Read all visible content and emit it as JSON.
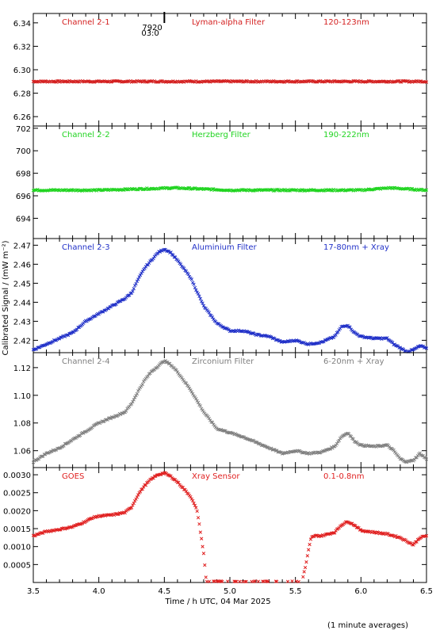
{
  "figure": {
    "shared_xlabel": "Time / h UTC, 04 Mar 2025",
    "shared_ylabel": "Calibrated Signal / (mW m⁻²)",
    "footnote": "(1 minute averages)",
    "marker_text": [
      "7920",
      "03:0"
    ],
    "marker_x": 4.5
  },
  "chart_data": [
    {
      "type": "scatter",
      "panel": "channel-2-1",
      "labels": [
        "Channel 2-1",
        "Lyman-alpha Filter",
        "120-123nm"
      ],
      "color": "#d42020",
      "xlim": [
        3.5,
        6.5
      ],
      "ylim": [
        6.252,
        6.348
      ],
      "yticks": [
        6.26,
        6.28,
        6.3,
        6.32,
        6.34
      ],
      "ytick_labels": [
        "6.26",
        "6.28",
        "6.30",
        "6.32",
        "6.34"
      ],
      "series": [
        {
          "x": [
            3.5,
            4.0,
            4.5,
            5.0,
            5.5,
            6.0,
            6.5
          ],
          "y": [
            6.29,
            6.29,
            6.29,
            6.29,
            6.29,
            6.29,
            6.29
          ]
        }
      ]
    },
    {
      "type": "scatter",
      "panel": "channel-2-2",
      "labels": [
        "Channel 2-2",
        "Herzberg Filter",
        "190-222nm"
      ],
      "color": "#20d420",
      "xlim": [
        3.5,
        6.5
      ],
      "ylim": [
        692.2,
        702.2
      ],
      "yticks": [
        694,
        696,
        698,
        700,
        702
      ],
      "ytick_labels": [
        "694",
        "696",
        "698",
        "700",
        "702"
      ],
      "series": [
        {
          "x": [
            3.5,
            4.0,
            4.58,
            5.0,
            5.5,
            6.0,
            6.22,
            6.5
          ],
          "y": [
            696.5,
            696.5,
            696.7,
            696.5,
            696.5,
            696.5,
            696.7,
            696.5
          ]
        }
      ]
    },
    {
      "type": "scatter",
      "panel": "channel-2-3",
      "labels": [
        "Channel 2-3",
        "Aluminium Filter",
        "17-80nm + Xray"
      ],
      "color": "#2030c8",
      "xlim": [
        3.5,
        6.5
      ],
      "ylim": [
        2.4135,
        2.4735
      ],
      "yticks": [
        2.42,
        2.43,
        2.44,
        2.45,
        2.46,
        2.47
      ],
      "ytick_labels": [
        "2.42",
        "2.43",
        "2.44",
        "2.45",
        "2.46",
        "2.47"
      ],
      "series": [
        {
          "x": [
            3.5,
            3.6,
            3.7,
            3.8,
            3.9,
            4.0,
            4.1,
            4.2,
            4.25,
            4.3,
            4.35,
            4.4,
            4.45,
            4.5,
            4.55,
            4.6,
            4.7,
            4.8,
            4.9,
            5.0,
            5.1,
            5.2,
            5.3,
            5.4,
            5.5,
            5.6,
            5.7,
            5.8,
            5.85,
            5.9,
            5.95,
            6.0,
            6.1,
            6.2,
            6.25,
            6.3,
            6.35,
            6.4,
            6.45,
            6.5
          ],
          "y": [
            2.415,
            2.418,
            2.421,
            2.424,
            2.43,
            2.434,
            2.438,
            2.442,
            2.445,
            2.452,
            2.458,
            2.462,
            2.466,
            2.468,
            2.466,
            2.462,
            2.453,
            2.438,
            2.429,
            2.425,
            2.425,
            2.423,
            2.422,
            2.419,
            2.42,
            2.418,
            2.419,
            2.422,
            2.427,
            2.428,
            2.424,
            2.422,
            2.421,
            2.421,
            2.418,
            2.416,
            2.414,
            2.415,
            2.417,
            2.416
          ]
        }
      ]
    },
    {
      "type": "scatter",
      "panel": "channel-2-4",
      "labels": [
        "Channel 2-4",
        "Zirconium Filter",
        "6-20nm + Xray"
      ],
      "color": "#808080",
      "xlim": [
        3.5,
        6.5
      ],
      "ylim": [
        1.0478,
        1.1308
      ],
      "yticks": [
        1.06,
        1.08,
        1.1,
        1.12
      ],
      "ytick_labels": [
        "1.06",
        "1.08",
        "1.10",
        "1.12"
      ],
      "series": [
        {
          "x": [
            3.5,
            3.6,
            3.7,
            3.8,
            3.9,
            4.0,
            4.1,
            4.2,
            4.25,
            4.3,
            4.35,
            4.4,
            4.45,
            4.5,
            4.55,
            4.6,
            4.7,
            4.8,
            4.9,
            5.0,
            5.1,
            5.2,
            5.3,
            5.4,
            5.5,
            5.6,
            5.7,
            5.8,
            5.85,
            5.9,
            5.95,
            6.0,
            6.1,
            6.2,
            6.25,
            6.3,
            6.35,
            6.4,
            6.45,
            6.5
          ],
          "y": [
            1.052,
            1.058,
            1.062,
            1.068,
            1.074,
            1.08,
            1.084,
            1.088,
            1.094,
            1.103,
            1.111,
            1.117,
            1.121,
            1.125,
            1.122,
            1.117,
            1.104,
            1.088,
            1.076,
            1.073,
            1.07,
            1.066,
            1.062,
            1.058,
            1.06,
            1.058,
            1.059,
            1.063,
            1.07,
            1.073,
            1.067,
            1.064,
            1.063,
            1.064,
            1.06,
            1.054,
            1.052,
            1.053,
            1.058,
            1.054
          ]
        }
      ]
    },
    {
      "type": "scatter",
      "panel": "goes",
      "labels": [
        "GOES",
        "Xray Sensor",
        "0.1-0.8nm"
      ],
      "color": "#e02020",
      "xlim": [
        3.5,
        6.5
      ],
      "ylim": [
        0.0,
        0.0032
      ],
      "yticks": [
        0.0005,
        0.001,
        0.0015,
        0.002,
        0.0025,
        0.003
      ],
      "ytick_labels": [
        "0.0005",
        "0.0010",
        "0.0015",
        "0.0020",
        "0.0025",
        "0.0030"
      ],
      "series": [
        {
          "x": [
            3.5,
            3.6,
            3.7,
            3.8,
            3.9,
            3.95,
            4.0,
            4.1,
            4.2,
            4.25,
            4.3,
            4.35,
            4.4,
            4.45,
            4.5,
            4.55,
            4.6,
            4.7,
            4.75,
            4.78,
            4.8,
            4.82,
            5.0,
            5.2,
            5.4,
            5.55,
            5.58,
            5.6,
            5.62,
            5.65,
            5.7,
            5.8,
            5.85,
            5.9,
            5.95,
            6.0,
            6.1,
            6.2,
            6.3,
            6.35,
            6.4,
            6.45,
            6.5
          ],
          "y": [
            0.0013,
            0.00142,
            0.00148,
            0.00155,
            0.0017,
            0.0018,
            0.00185,
            0.00188,
            0.00195,
            0.0021,
            0.00245,
            0.0027,
            0.00288,
            0.003,
            0.00305,
            0.00295,
            0.0028,
            0.0024,
            0.002,
            0.0013,
            0.0008,
            2e-05,
            2e-05,
            2e-05,
            2e-05,
            2e-05,
            0.0005,
            0.0009,
            0.00125,
            0.0013,
            0.0013,
            0.0014,
            0.0016,
            0.0017,
            0.0016,
            0.00145,
            0.0014,
            0.00135,
            0.00125,
            0.00115,
            0.00105,
            0.00125,
            0.0013
          ]
        }
      ]
    }
  ],
  "xaxis": {
    "ticks": [
      3.5,
      4.0,
      4.5,
      5.0,
      5.5,
      6.0,
      6.5
    ],
    "tick_labels": [
      "3.5",
      "4.0",
      "4.5",
      "5.0",
      "5.5",
      "6.0",
      "6.5"
    ]
  }
}
